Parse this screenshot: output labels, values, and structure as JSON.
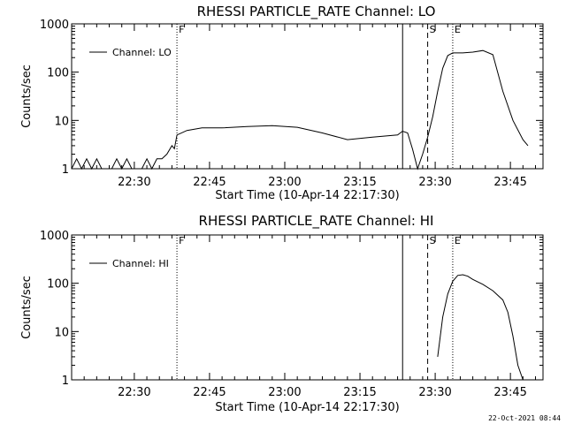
{
  "chart_data": [
    {
      "type": "line",
      "title": "RHESSI PARTICLE_RATE Channel: LO",
      "xlabel": "Start Time (10-Apr-14 22:17:30)",
      "ylabel": "Counts/sec",
      "y_scale": "log",
      "ylim": [
        1,
        1000
      ],
      "xlim_minutes_after_start": [
        0,
        94
      ],
      "x_tick_labels": [
        "22:30",
        "22:45",
        "23:00",
        "23:15",
        "23:30",
        "23:45"
      ],
      "y_tick_labels": [
        "1",
        "10",
        "100",
        "1000"
      ],
      "legend": "top-left",
      "grid": false,
      "series": [
        {
          "name": "Channel: LO",
          "x": [
            0,
            1,
            2,
            3,
            4,
            5,
            6,
            7,
            8,
            9,
            10,
            11,
            12,
            13,
            14,
            15,
            16,
            17,
            18,
            19,
            20,
            20.5,
            21,
            23,
            26,
            30,
            35,
            40,
            45,
            50,
            55,
            60,
            65,
            66,
            67,
            68,
            69,
            70,
            71,
            72,
            73,
            74,
            75,
            76,
            78,
            80,
            82,
            84,
            86,
            88,
            90,
            91
          ],
          "y": [
            1,
            1.6,
            1,
            1.6,
            1,
            1.6,
            1,
            1,
            1,
            1.6,
            1,
            1.6,
            1,
            1,
            1,
            1.6,
            1,
            1.6,
            1.6,
            2,
            3,
            2.6,
            5,
            6.2,
            7,
            7,
            7.5,
            7.8,
            7.2,
            5.5,
            4,
            4.5,
            5,
            6,
            5.5,
            2.5,
            1,
            2,
            4.5,
            12,
            40,
            120,
            220,
            250,
            250,
            260,
            280,
            230,
            40,
            10,
            4,
            3
          ]
        }
      ],
      "markers": [
        {
          "label": "F",
          "x_min": 21,
          "style": "dotted"
        },
        {
          "label": "",
          "x_min": 66,
          "style": "solid"
        },
        {
          "label": "S",
          "x_min": 71,
          "style": "dashed"
        },
        {
          "label": "E",
          "x_min": 76,
          "style": "dotted"
        },
        {
          "label": "",
          "x_min": 94,
          "style": "dashdot"
        }
      ]
    },
    {
      "type": "line",
      "title": "RHESSI PARTICLE_RATE Channel: HI",
      "xlabel": "Start Time (10-Apr-14 22:17:30)",
      "ylabel": "Counts/sec",
      "y_scale": "log",
      "ylim": [
        1,
        1000
      ],
      "xlim_minutes_after_start": [
        0,
        94
      ],
      "x_tick_labels": [
        "22:30",
        "22:45",
        "23:00",
        "23:15",
        "23:30",
        "23:45"
      ],
      "y_tick_labels": [
        "1",
        "10",
        "100",
        "1000"
      ],
      "legend": "top-left",
      "grid": false,
      "series": [
        {
          "name": "Channel: HI",
          "x": [
            73,
            74,
            75,
            76,
            77,
            78,
            79,
            80,
            82,
            84,
            86,
            87,
            88,
            89,
            90
          ],
          "y": [
            3,
            20,
            60,
            110,
            145,
            150,
            140,
            120,
            95,
            70,
            45,
            25,
            8,
            2,
            1
          ]
        }
      ],
      "markers": [
        {
          "label": "F",
          "x_min": 21,
          "style": "dotted"
        },
        {
          "label": "",
          "x_min": 66,
          "style": "solid"
        },
        {
          "label": "S",
          "x_min": 71,
          "style": "dashed"
        },
        {
          "label": "E",
          "x_min": 76,
          "style": "dotted"
        },
        {
          "label": "",
          "x_min": 94,
          "style": "dashdot"
        }
      ]
    }
  ],
  "footer": {
    "stamp": "22-Oct-2021 08:44"
  }
}
